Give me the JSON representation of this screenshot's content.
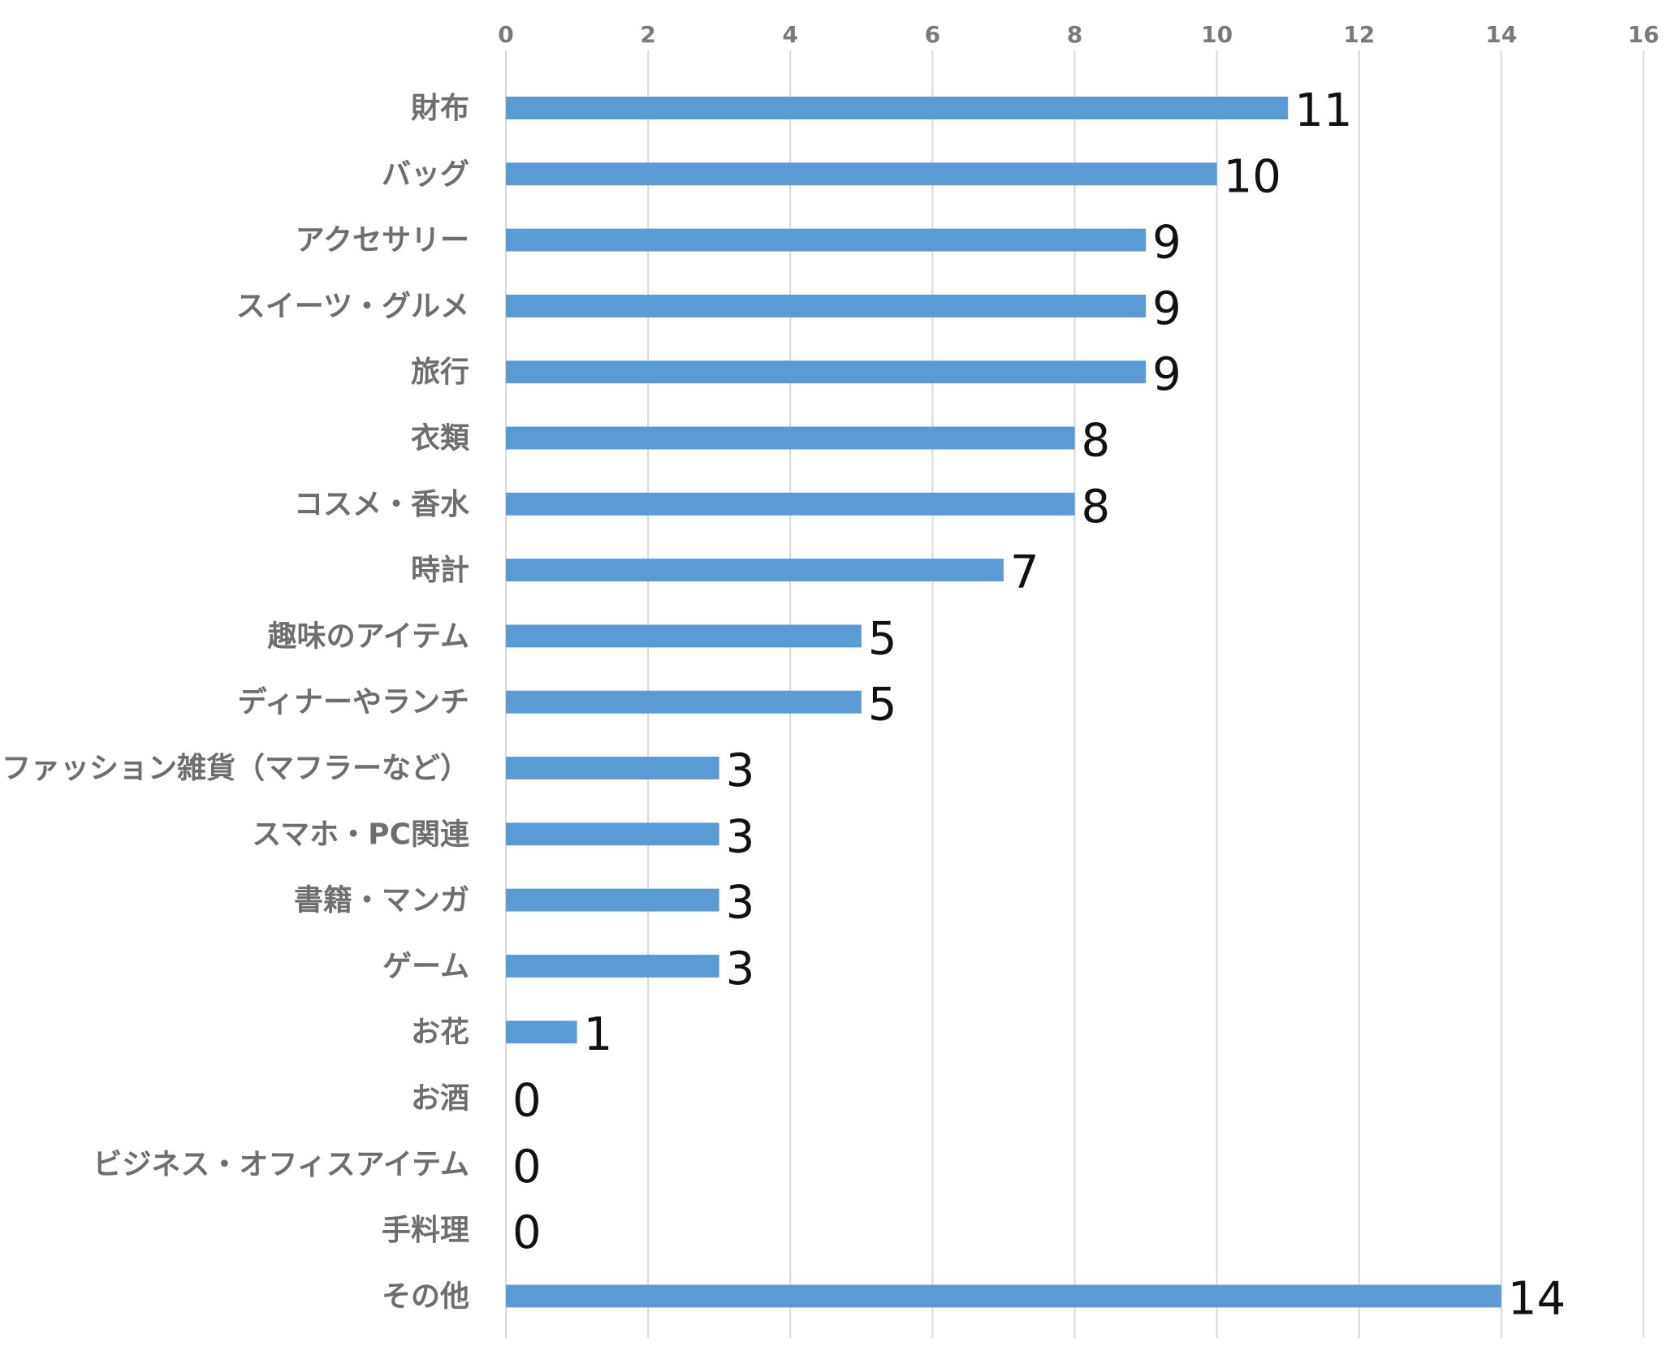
{
  "chart_data": {
    "type": "bar",
    "orientation": "horizontal",
    "categories": [
      "財布",
      "バッグ",
      "アクセサリー",
      "スイーツ・グルメ",
      "旅行",
      "衣類",
      "コスメ・香水",
      "時計",
      "趣味のアイテム",
      "ディナーやランチ",
      "ファッション雑貨（マフラーなど）",
      "スマホ・PC関連",
      "書籍・マンガ",
      "ゲーム",
      "お花",
      "お酒",
      "ビジネス・オフィスアイテム",
      "手料理",
      "その他"
    ],
    "values": [
      11,
      10,
      9,
      9,
      9,
      8,
      8,
      7,
      5,
      5,
      3,
      3,
      3,
      3,
      1,
      0,
      0,
      0,
      14
    ],
    "xlim": [
      0,
      16
    ],
    "xticks": [
      "0",
      "2",
      "4",
      "6",
      "8",
      "10",
      "12",
      "14",
      "16"
    ],
    "grid": true,
    "legend": "none",
    "bar_color": "#5b9bd5",
    "title": "",
    "xlabel": "",
    "ylabel": ""
  }
}
